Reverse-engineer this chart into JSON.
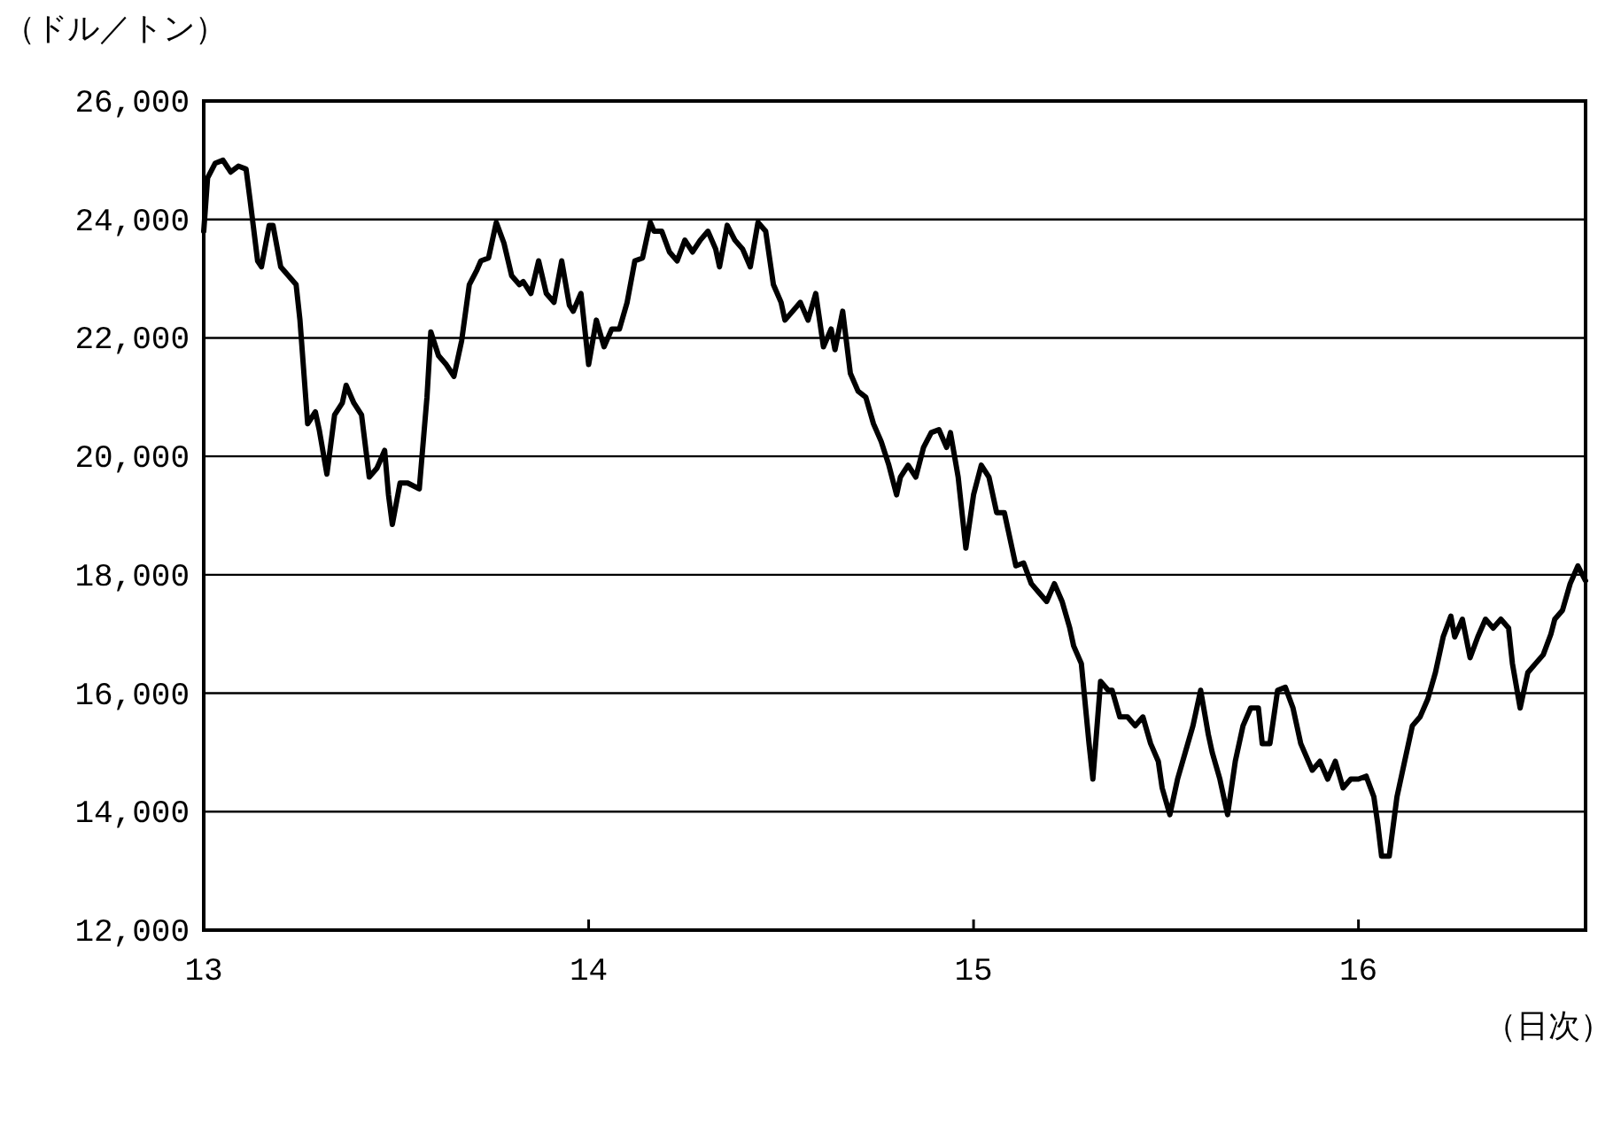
{
  "chart_data": {
    "type": "line",
    "ylabel": "（ドル／トン）",
    "xlabel": "（日次）",
    "xlim": [
      13,
      16.59
    ],
    "xticks": [
      13,
      14,
      15,
      16
    ],
    "ylim": [
      12000,
      26000
    ],
    "yticks": [
      {
        "value": 12000,
        "label": "12,000"
      },
      {
        "value": 14000,
        "label": "14,000"
      },
      {
        "value": 16000,
        "label": "16,000"
      },
      {
        "value": 18000,
        "label": "18,000"
      },
      {
        "value": 20000,
        "label": "20,000"
      },
      {
        "value": 22000,
        "label": "22,000"
      },
      {
        "value": 24000,
        "label": "24,000"
      },
      {
        "value": 26000,
        "label": "26,000"
      }
    ],
    "grid": "y",
    "marker": "none",
    "line_style": "solid",
    "series": [
      {
        "color": "#000000",
        "x": [
          13.0,
          13.01,
          13.03,
          13.05,
          13.07,
          13.09,
          13.11,
          13.12,
          13.14,
          13.15,
          13.17,
          13.18,
          13.2,
          13.22,
          13.24,
          13.25,
          13.27,
          13.29,
          13.3,
          13.32,
          13.34,
          13.36,
          13.37,
          13.39,
          13.41,
          13.43,
          13.45,
          13.47,
          13.48,
          13.49,
          13.51,
          13.53,
          13.56,
          13.58,
          13.59,
          13.61,
          13.63,
          13.65,
          13.67,
          13.69,
          13.71,
          13.72,
          13.74,
          13.76,
          13.78,
          13.8,
          13.82,
          13.83,
          13.85,
          13.87,
          13.89,
          13.91,
          13.93,
          13.95,
          13.96,
          13.98,
          14.0,
          14.02,
          14.04,
          14.06,
          14.08,
          14.1,
          14.12,
          14.14,
          14.16,
          14.17,
          14.19,
          14.21,
          14.23,
          14.25,
          14.27,
          14.29,
          14.31,
          14.33,
          14.34,
          14.36,
          14.38,
          14.4,
          14.42,
          14.44,
          14.46,
          14.48,
          14.5,
          14.51,
          14.53,
          14.55,
          14.57,
          14.59,
          14.61,
          14.63,
          14.64,
          14.66,
          14.68,
          14.7,
          14.72,
          14.74,
          14.76,
          14.78,
          14.8,
          14.81,
          14.83,
          14.85,
          14.87,
          14.89,
          14.91,
          14.93,
          14.94,
          14.96,
          14.98,
          15.0,
          15.02,
          15.04,
          15.06,
          15.08,
          15.09,
          15.11,
          15.13,
          15.15,
          15.17,
          15.19,
          15.21,
          15.23,
          15.25,
          15.26,
          15.28,
          15.3,
          15.31,
          15.33,
          15.35,
          15.36,
          15.38,
          15.4,
          15.42,
          15.44,
          15.46,
          15.48,
          15.49,
          15.51,
          15.53,
          15.55,
          15.57,
          15.59,
          15.61,
          15.62,
          15.64,
          15.66,
          15.68,
          15.7,
          15.72,
          15.74,
          15.75,
          15.77,
          15.79,
          15.81,
          15.83,
          15.85,
          15.87,
          15.88,
          15.9,
          15.92,
          15.94,
          15.96,
          15.98,
          16.0,
          16.02,
          16.04,
          16.05,
          16.06,
          16.08,
          16.1,
          16.12,
          16.14,
          16.16,
          16.18,
          16.2,
          16.22,
          16.24,
          16.25,
          16.27,
          16.29,
          16.31,
          16.33,
          16.35,
          16.37,
          16.39,
          16.4,
          16.42,
          16.44,
          16.46,
          16.48,
          16.5,
          16.51,
          16.53,
          16.55,
          16.57,
          16.59
        ],
        "values": [
          23800,
          24700,
          24950,
          25000,
          24800,
          24900,
          24850,
          24350,
          23300,
          23200,
          23900,
          23900,
          23200,
          23050,
          22900,
          22300,
          20550,
          20750,
          20450,
          19700,
          20700,
          20900,
          21200,
          20900,
          20700,
          19650,
          19800,
          20100,
          19350,
          18850,
          19550,
          19550,
          19450,
          21000,
          22100,
          21700,
          21550,
          21350,
          21950,
          22900,
          23150,
          23300,
          23350,
          23950,
          23600,
          23050,
          22900,
          22950,
          22750,
          23300,
          22750,
          22600,
          23300,
          22550,
          22450,
          22750,
          21550,
          22300,
          21850,
          22150,
          22150,
          22600,
          23300,
          23350,
          23950,
          23800,
          23800,
          23450,
          23300,
          23650,
          23450,
          23650,
          23800,
          23500,
          23200,
          23900,
          23650,
          23500,
          23200,
          23950,
          23800,
          22900,
          22600,
          22300,
          22450,
          22600,
          22300,
          22750,
          21850,
          22150,
          21800,
          22450,
          21400,
          21100,
          21000,
          20550,
          20250,
          19850,
          19350,
          19650,
          19850,
          19650,
          20150,
          20400,
          20450,
          20150,
          20400,
          19650,
          18450,
          19350,
          19850,
          19650,
          19050,
          19050,
          18750,
          18150,
          18200,
          17850,
          17700,
          17550,
          17850,
          17550,
          17100,
          16800,
          16500,
          15150,
          14550,
          16200,
          16050,
          16050,
          15600,
          15600,
          15450,
          15600,
          15150,
          14850,
          14400,
          13950,
          14550,
          15000,
          15450,
          16050,
          15300,
          15000,
          14550,
          13950,
          14850,
          15450,
          15750,
          15750,
          15150,
          15150,
          16050,
          16100,
          15750,
          15150,
          14850,
          14700,
          14850,
          14550,
          14850,
          14400,
          14550,
          14550,
          14600,
          14250,
          13800,
          13250,
          13250,
          14250,
          14850,
          15450,
          15600,
          15900,
          16350,
          16950,
          17300,
          16950,
          17250,
          16600,
          16950,
          17250,
          17100,
          17250,
          17100,
          16500,
          15750,
          16350,
          16500,
          16650,
          17000,
          17250,
          17400,
          17850,
          18150,
          17900
        ]
      }
    ]
  }
}
